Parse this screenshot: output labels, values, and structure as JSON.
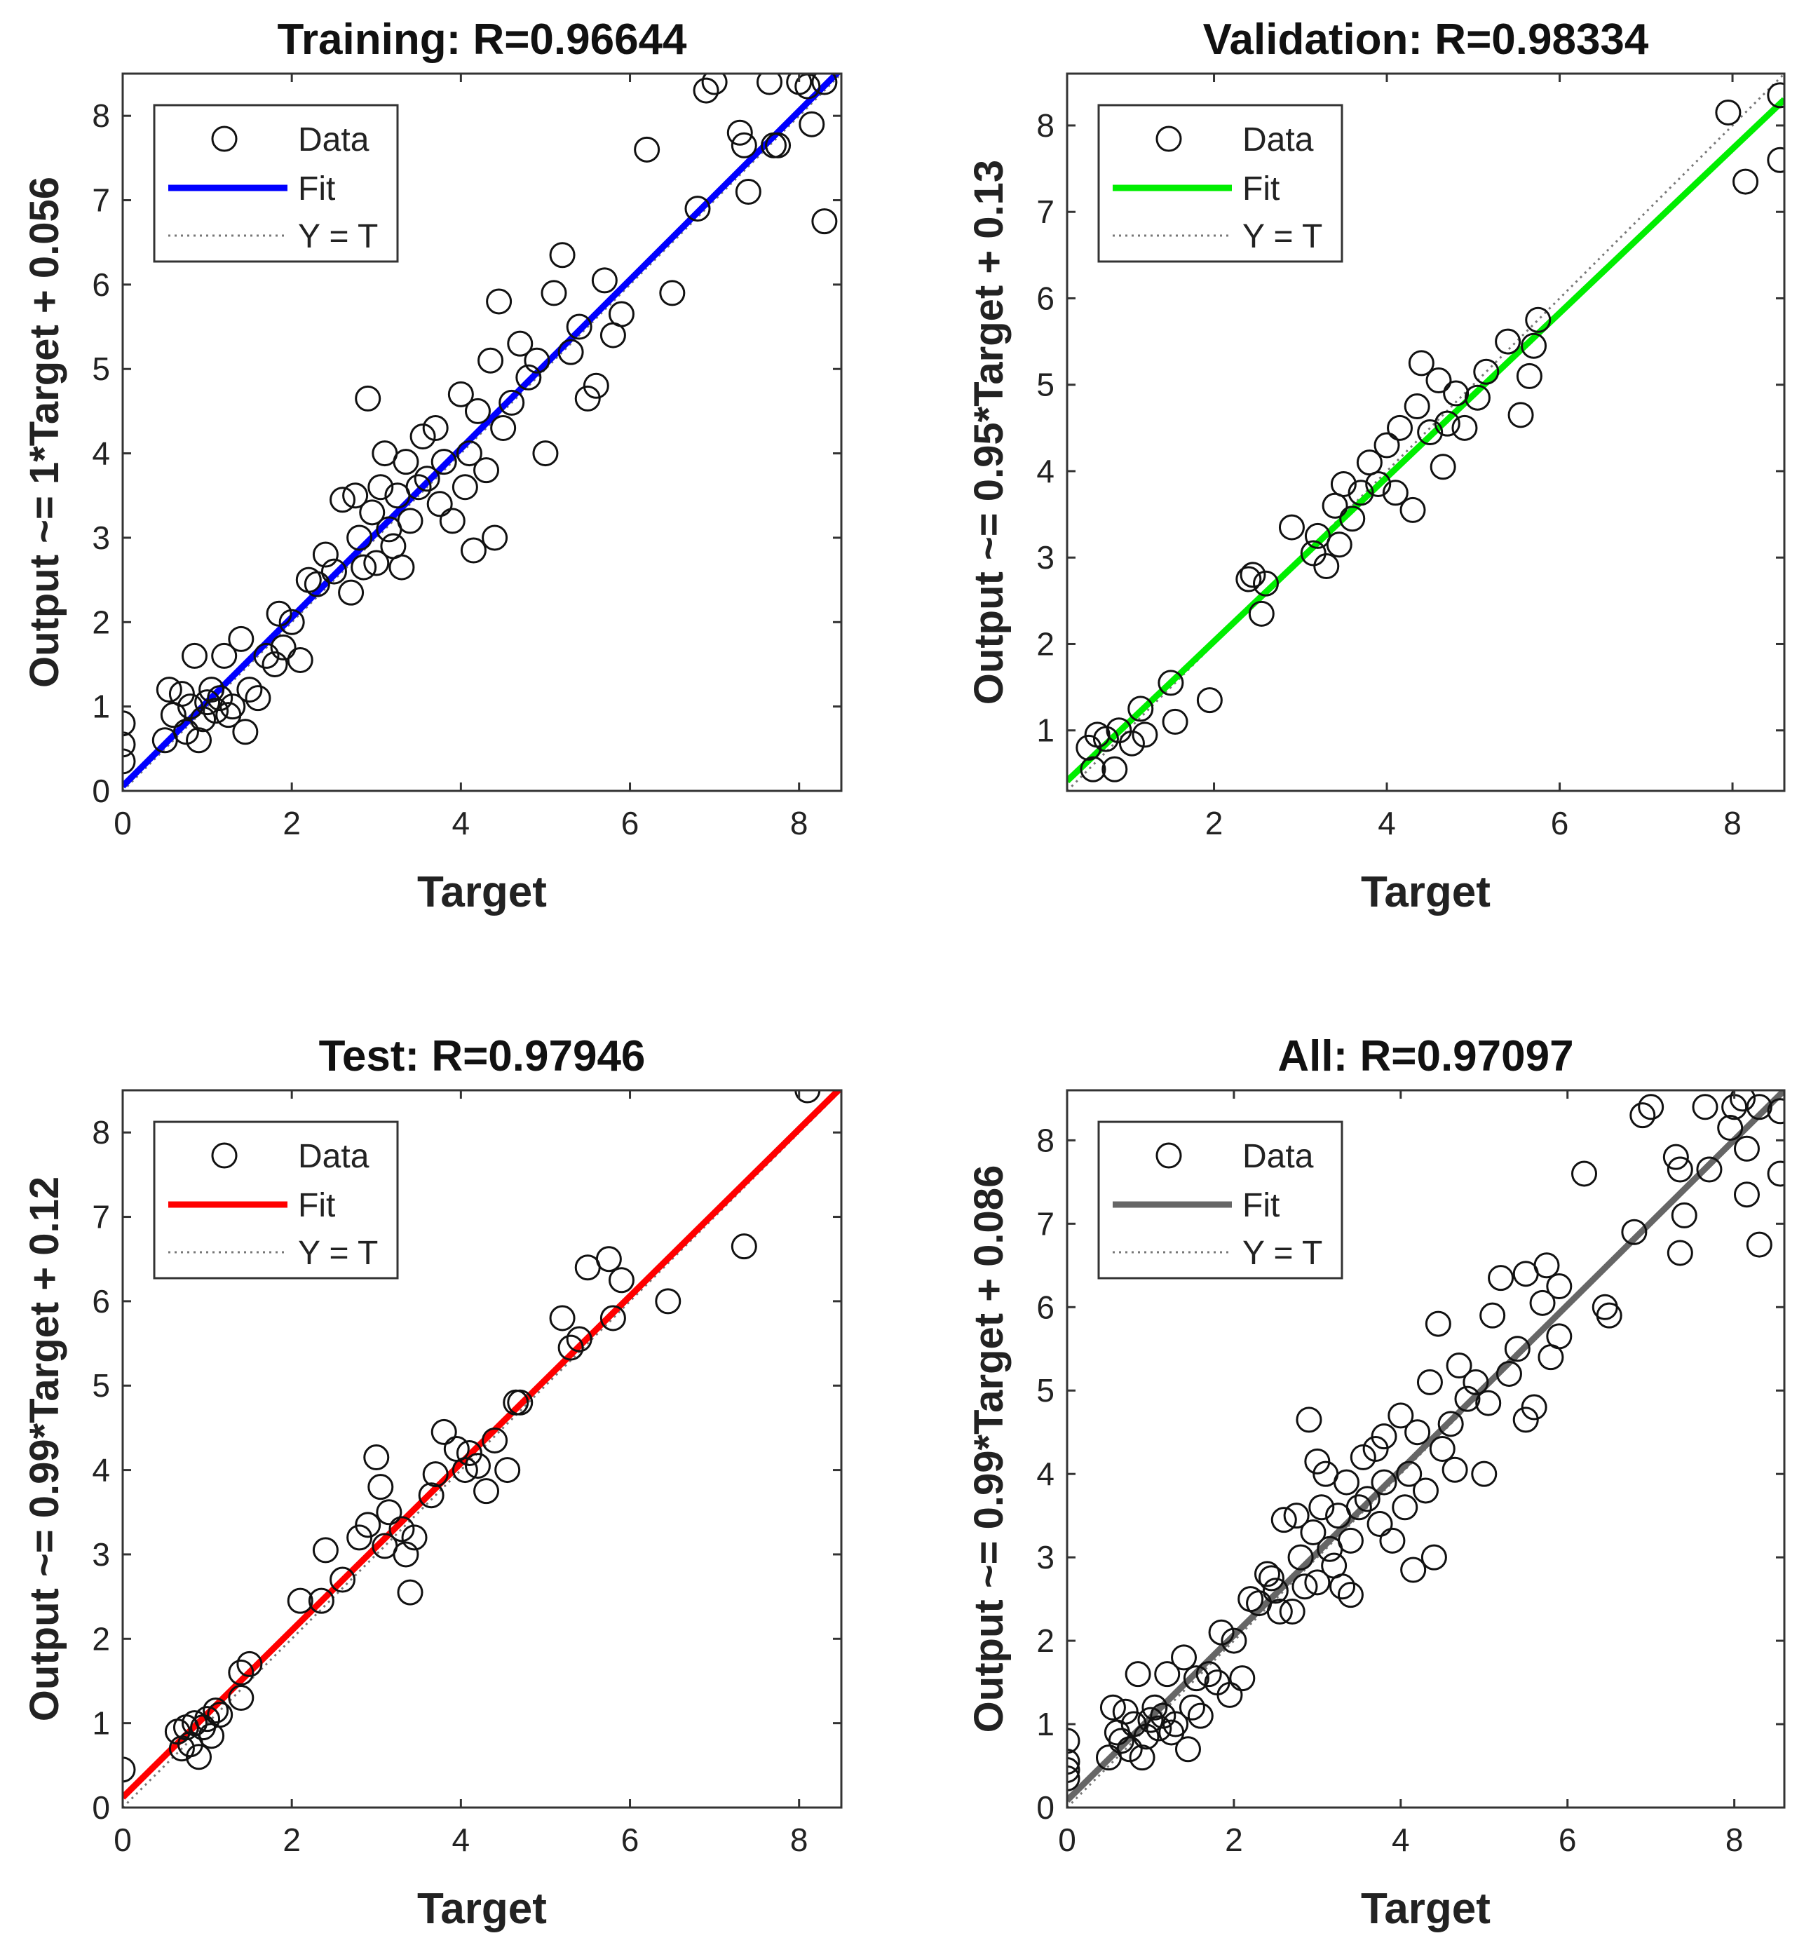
{
  "chart_data": [
    {
      "type": "scatter",
      "title": "Training: R=0.96644",
      "xlabel": "Target",
      "ylabel": "Output ~= 1*Target + 0.056",
      "xlim": [
        0,
        8.5
      ],
      "ylim": [
        0,
        8.5
      ],
      "xticks": [
        "0",
        "2",
        "4",
        "6",
        "8"
      ],
      "yticks": [
        "0",
        "1",
        "2",
        "3",
        "4",
        "5",
        "6",
        "7",
        "8"
      ],
      "fit": {
        "slope": 1.0,
        "intercept": 0.056,
        "color": "#0000ff"
      },
      "legend": {
        "position": "top-left",
        "entries": [
          "Data",
          "Fit",
          "Y = T"
        ]
      },
      "points": [
        [
          0,
          0.8
        ],
        [
          0,
          0.55
        ],
        [
          0,
          0.35
        ],
        [
          0.5,
          0.6
        ],
        [
          0.55,
          1.2
        ],
        [
          0.6,
          0.9
        ],
        [
          0.7,
          1.15
        ],
        [
          0.75,
          0.7
        ],
        [
          0.8,
          1.0
        ],
        [
          0.85,
          1.6
        ],
        [
          0.9,
          0.6
        ],
        [
          0.95,
          0.85
        ],
        [
          1.0,
          1.05
        ],
        [
          1.05,
          1.2
        ],
        [
          1.1,
          0.95
        ],
        [
          1.15,
          1.1
        ],
        [
          1.2,
          1.6
        ],
        [
          1.25,
          0.9
        ],
        [
          1.3,
          1.0
        ],
        [
          1.4,
          1.8
        ],
        [
          1.45,
          0.7
        ],
        [
          1.5,
          1.2
        ],
        [
          1.6,
          1.1
        ],
        [
          1.7,
          1.6
        ],
        [
          1.8,
          1.5
        ],
        [
          1.85,
          2.1
        ],
        [
          1.9,
          1.7
        ],
        [
          2.0,
          2.0
        ],
        [
          2.1,
          1.55
        ],
        [
          2.2,
          2.5
        ],
        [
          2.3,
          2.45
        ],
        [
          2.4,
          2.8
        ],
        [
          2.5,
          2.6
        ],
        [
          2.6,
          3.45
        ],
        [
          2.7,
          2.35
        ],
        [
          2.75,
          3.5
        ],
        [
          2.8,
          3.0
        ],
        [
          2.85,
          2.65
        ],
        [
          2.9,
          4.65
        ],
        [
          2.95,
          3.3
        ],
        [
          3.0,
          2.7
        ],
        [
          3.05,
          3.6
        ],
        [
          3.1,
          4.0
        ],
        [
          3.15,
          3.1
        ],
        [
          3.2,
          2.9
        ],
        [
          3.25,
          3.5
        ],
        [
          3.3,
          2.65
        ],
        [
          3.35,
          3.9
        ],
        [
          3.4,
          3.2
        ],
        [
          3.5,
          3.6
        ],
        [
          3.55,
          4.2
        ],
        [
          3.6,
          3.7
        ],
        [
          3.7,
          4.3
        ],
        [
          3.75,
          3.4
        ],
        [
          3.8,
          3.9
        ],
        [
          3.9,
          3.2
        ],
        [
          4.0,
          4.7
        ],
        [
          4.05,
          3.6
        ],
        [
          4.1,
          4.0
        ],
        [
          4.15,
          2.85
        ],
        [
          4.2,
          4.5
        ],
        [
          4.3,
          3.8
        ],
        [
          4.35,
          5.1
        ],
        [
          4.4,
          3.0
        ],
        [
          4.45,
          5.8
        ],
        [
          4.5,
          4.3
        ],
        [
          4.6,
          4.6
        ],
        [
          4.7,
          5.3
        ],
        [
          4.8,
          4.9
        ],
        [
          4.9,
          5.1
        ],
        [
          5.0,
          4.0
        ],
        [
          5.1,
          5.9
        ],
        [
          5.2,
          6.35
        ],
        [
          5.3,
          5.2
        ],
        [
          5.4,
          5.5
        ],
        [
          5.5,
          4.65
        ],
        [
          5.6,
          4.8
        ],
        [
          5.7,
          6.05
        ],
        [
          5.8,
          5.4
        ],
        [
          5.9,
          5.65
        ],
        [
          6.2,
          7.6
        ],
        [
          6.5,
          5.9
        ],
        [
          6.8,
          6.9
        ],
        [
          6.9,
          8.3
        ],
        [
          7.0,
          8.4
        ],
        [
          7.3,
          7.8
        ],
        [
          7.35,
          7.65
        ],
        [
          7.4,
          7.1
        ],
        [
          7.65,
          8.4
        ],
        [
          7.7,
          7.65
        ],
        [
          7.75,
          7.65
        ],
        [
          8.0,
          8.4
        ],
        [
          8.1,
          8.35
        ],
        [
          8.15,
          7.9
        ],
        [
          8.3,
          8.4
        ],
        [
          8.3,
          6.75
        ]
      ]
    },
    {
      "type": "scatter",
      "title": "Validation: R=0.98334",
      "xlabel": "Target",
      "ylabel": "Output ~= 0.95*Target + 0.13",
      "xlim": [
        0.3,
        8.6
      ],
      "ylim": [
        0.3,
        8.6
      ],
      "xticks": [
        "2",
        "4",
        "6",
        "8"
      ],
      "yticks": [
        "1",
        "2",
        "3",
        "4",
        "5",
        "6",
        "7",
        "8"
      ],
      "fit": {
        "slope": 0.95,
        "intercept": 0.13,
        "color": "#00ee00"
      },
      "legend": {
        "position": "top-left",
        "entries": [
          "Data",
          "Fit",
          "Y = T"
        ]
      },
      "points": [
        [
          0.55,
          0.8
        ],
        [
          0.6,
          0.55
        ],
        [
          0.65,
          0.95
        ],
        [
          0.75,
          0.9
        ],
        [
          0.85,
          0.55
        ],
        [
          0.9,
          1.0
        ],
        [
          1.05,
          0.85
        ],
        [
          1.15,
          1.25
        ],
        [
          1.2,
          0.95
        ],
        [
          1.5,
          1.55
        ],
        [
          1.55,
          1.1
        ],
        [
          1.95,
          1.35
        ],
        [
          2.4,
          2.75
        ],
        [
          2.45,
          2.8
        ],
        [
          2.55,
          2.35
        ],
        [
          2.6,
          2.7
        ],
        [
          2.9,
          3.35
        ],
        [
          3.15,
          3.05
        ],
        [
          3.2,
          3.25
        ],
        [
          3.3,
          2.9
        ],
        [
          3.4,
          3.6
        ],
        [
          3.45,
          3.15
        ],
        [
          3.5,
          3.85
        ],
        [
          3.6,
          3.45
        ],
        [
          3.7,
          3.75
        ],
        [
          3.8,
          4.1
        ],
        [
          3.9,
          3.85
        ],
        [
          4.0,
          4.3
        ],
        [
          4.1,
          3.75
        ],
        [
          4.15,
          4.5
        ],
        [
          4.3,
          3.55
        ],
        [
          4.35,
          4.75
        ],
        [
          4.4,
          5.25
        ],
        [
          4.5,
          4.45
        ],
        [
          4.6,
          5.05
        ],
        [
          4.65,
          4.05
        ],
        [
          4.7,
          4.55
        ],
        [
          4.8,
          4.9
        ],
        [
          4.9,
          4.5
        ],
        [
          5.05,
          4.85
        ],
        [
          5.15,
          5.15
        ],
        [
          5.4,
          5.5
        ],
        [
          5.55,
          4.65
        ],
        [
          5.65,
          5.1
        ],
        [
          5.7,
          5.45
        ],
        [
          5.75,
          5.75
        ],
        [
          7.95,
          8.15
        ],
        [
          8.15,
          7.35
        ],
        [
          8.55,
          8.35
        ],
        [
          8.55,
          7.6
        ]
      ]
    },
    {
      "type": "scatter",
      "title": "Test: R=0.97946",
      "xlabel": "Target",
      "ylabel": "Output ~= 0.99*Target + 0.12",
      "xlim": [
        0,
        8.5
      ],
      "ylim": [
        0,
        8.5
      ],
      "xticks": [
        "0",
        "2",
        "4",
        "6",
        "8"
      ],
      "yticks": [
        "0",
        "1",
        "2",
        "3",
        "4",
        "5",
        "6",
        "7",
        "8"
      ],
      "fit": {
        "slope": 0.99,
        "intercept": 0.12,
        "color": "#ff0000"
      },
      "legend": {
        "position": "top-left",
        "entries": [
          "Data",
          "Fit",
          "Y = T"
        ]
      },
      "points": [
        [
          0,
          0.45
        ],
        [
          0.65,
          0.9
        ],
        [
          0.7,
          0.7
        ],
        [
          0.75,
          0.95
        ],
        [
          0.8,
          0.75
        ],
        [
          0.85,
          1.0
        ],
        [
          0.9,
          0.6
        ],
        [
          0.95,
          0.95
        ],
        [
          1.0,
          1.05
        ],
        [
          1.05,
          0.85
        ],
        [
          1.1,
          1.15
        ],
        [
          1.15,
          1.1
        ],
        [
          1.4,
          1.3
        ],
        [
          1.4,
          1.6
        ],
        [
          1.5,
          1.7
        ],
        [
          2.1,
          2.45
        ],
        [
          2.35,
          2.45
        ],
        [
          2.4,
          3.05
        ],
        [
          2.6,
          2.7
        ],
        [
          2.8,
          3.2
        ],
        [
          2.9,
          3.35
        ],
        [
          3.0,
          4.15
        ],
        [
          3.05,
          3.8
        ],
        [
          3.1,
          3.1
        ],
        [
          3.15,
          3.5
        ],
        [
          3.3,
          3.3
        ],
        [
          3.35,
          3.0
        ],
        [
          3.4,
          2.55
        ],
        [
          3.45,
          3.2
        ],
        [
          3.65,
          3.7
        ],
        [
          3.7,
          3.95
        ],
        [
          3.8,
          4.45
        ],
        [
          3.95,
          4.25
        ],
        [
          4.05,
          4.0
        ],
        [
          4.1,
          4.2
        ],
        [
          4.2,
          4.05
        ],
        [
          4.3,
          3.75
        ],
        [
          4.4,
          4.35
        ],
        [
          4.55,
          4.0
        ],
        [
          4.65,
          4.8
        ],
        [
          4.7,
          4.8
        ],
        [
          5.2,
          5.8
        ],
        [
          5.3,
          5.45
        ],
        [
          5.4,
          5.55
        ],
        [
          5.5,
          6.4
        ],
        [
          5.75,
          6.5
        ],
        [
          5.8,
          5.8
        ],
        [
          5.9,
          6.25
        ],
        [
          6.45,
          6.0
        ],
        [
          7.35,
          6.65
        ],
        [
          8.1,
          8.5
        ]
      ]
    },
    {
      "type": "scatter",
      "title": "All: R=0.97097",
      "xlabel": "Target",
      "ylabel": "Output ~= 0.99*Target + 0.086",
      "xlim": [
        0,
        8.6
      ],
      "ylim": [
        0,
        8.6
      ],
      "xticks": [
        "0",
        "2",
        "4",
        "6",
        "8"
      ],
      "yticks": [
        "0",
        "1",
        "2",
        "3",
        "4",
        "5",
        "6",
        "7",
        "8"
      ],
      "fit": {
        "slope": 0.99,
        "intercept": 0.086,
        "color": "#666666"
      },
      "legend": {
        "position": "top-left",
        "entries": [
          "Data",
          "Fit",
          "Y = T"
        ]
      },
      "points": [
        [
          0,
          0.8
        ],
        [
          0,
          0.55
        ],
        [
          0,
          0.45
        ],
        [
          0,
          0.35
        ],
        [
          0.5,
          0.6
        ],
        [
          0.55,
          1.2
        ],
        [
          0.6,
          0.9
        ],
        [
          0.65,
          0.8
        ],
        [
          0.7,
          1.15
        ],
        [
          0.75,
          0.7
        ],
        [
          0.8,
          1.0
        ],
        [
          0.85,
          1.6
        ],
        [
          0.9,
          0.6
        ],
        [
          0.95,
          0.85
        ],
        [
          1.0,
          1.05
        ],
        [
          1.05,
          1.2
        ],
        [
          1.1,
          0.95
        ],
        [
          1.15,
          1.1
        ],
        [
          1.2,
          1.6
        ],
        [
          1.25,
          0.9
        ],
        [
          1.3,
          1.0
        ],
        [
          1.4,
          1.8
        ],
        [
          1.45,
          0.7
        ],
        [
          1.5,
          1.2
        ],
        [
          1.55,
          1.55
        ],
        [
          1.6,
          1.1
        ],
        [
          1.7,
          1.6
        ],
        [
          1.8,
          1.5
        ],
        [
          1.85,
          2.1
        ],
        [
          1.95,
          1.35
        ],
        [
          2.0,
          2.0
        ],
        [
          2.1,
          1.55
        ],
        [
          2.2,
          2.5
        ],
        [
          2.3,
          2.45
        ],
        [
          2.4,
          2.8
        ],
        [
          2.45,
          2.75
        ],
        [
          2.5,
          2.6
        ],
        [
          2.55,
          2.35
        ],
        [
          2.6,
          3.45
        ],
        [
          2.7,
          2.35
        ],
        [
          2.75,
          3.5
        ],
        [
          2.8,
          3.0
        ],
        [
          2.85,
          2.65
        ],
        [
          2.9,
          4.65
        ],
        [
          2.95,
          3.3
        ],
        [
          3.0,
          2.7
        ],
        [
          3.0,
          4.15
        ],
        [
          3.05,
          3.6
        ],
        [
          3.1,
          4.0
        ],
        [
          3.15,
          3.1
        ],
        [
          3.2,
          2.9
        ],
        [
          3.25,
          3.5
        ],
        [
          3.3,
          2.65
        ],
        [
          3.35,
          3.9
        ],
        [
          3.4,
          3.2
        ],
        [
          3.4,
          2.55
        ],
        [
          3.5,
          3.6
        ],
        [
          3.55,
          4.2
        ],
        [
          3.6,
          3.7
        ],
        [
          3.7,
          4.3
        ],
        [
          3.75,
          3.4
        ],
        [
          3.8,
          3.9
        ],
        [
          3.8,
          4.45
        ],
        [
          3.9,
          3.2
        ],
        [
          4.0,
          4.7
        ],
        [
          4.05,
          3.6
        ],
        [
          4.1,
          4.0
        ],
        [
          4.15,
          2.85
        ],
        [
          4.2,
          4.5
        ],
        [
          4.3,
          3.8
        ],
        [
          4.35,
          5.1
        ],
        [
          4.4,
          3.0
        ],
        [
          4.45,
          5.8
        ],
        [
          4.5,
          4.3
        ],
        [
          4.6,
          4.6
        ],
        [
          4.65,
          4.05
        ],
        [
          4.7,
          5.3
        ],
        [
          4.8,
          4.9
        ],
        [
          4.9,
          5.1
        ],
        [
          5.0,
          4.0
        ],
        [
          5.05,
          4.85
        ],
        [
          5.1,
          5.9
        ],
        [
          5.2,
          6.35
        ],
        [
          5.3,
          5.2
        ],
        [
          5.4,
          5.5
        ],
        [
          5.5,
          4.65
        ],
        [
          5.5,
          6.4
        ],
        [
          5.6,
          4.8
        ],
        [
          5.7,
          6.05
        ],
        [
          5.75,
          6.5
        ],
        [
          5.8,
          5.4
        ],
        [
          5.9,
          5.65
        ],
        [
          5.9,
          6.25
        ],
        [
          6.2,
          7.6
        ],
        [
          6.45,
          6.0
        ],
        [
          6.5,
          5.9
        ],
        [
          6.8,
          6.9
        ],
        [
          6.9,
          8.3
        ],
        [
          7.0,
          8.4
        ],
        [
          7.3,
          7.8
        ],
        [
          7.35,
          7.65
        ],
        [
          7.35,
          6.65
        ],
        [
          7.4,
          7.1
        ],
        [
          7.65,
          8.4
        ],
        [
          7.7,
          7.65
        ],
        [
          7.95,
          8.15
        ],
        [
          8.0,
          8.4
        ],
        [
          8.1,
          8.5
        ],
        [
          8.15,
          7.9
        ],
        [
          8.15,
          7.35
        ],
        [
          8.3,
          8.4
        ],
        [
          8.3,
          6.75
        ],
        [
          8.55,
          8.35
        ],
        [
          8.55,
          7.6
        ]
      ]
    }
  ]
}
